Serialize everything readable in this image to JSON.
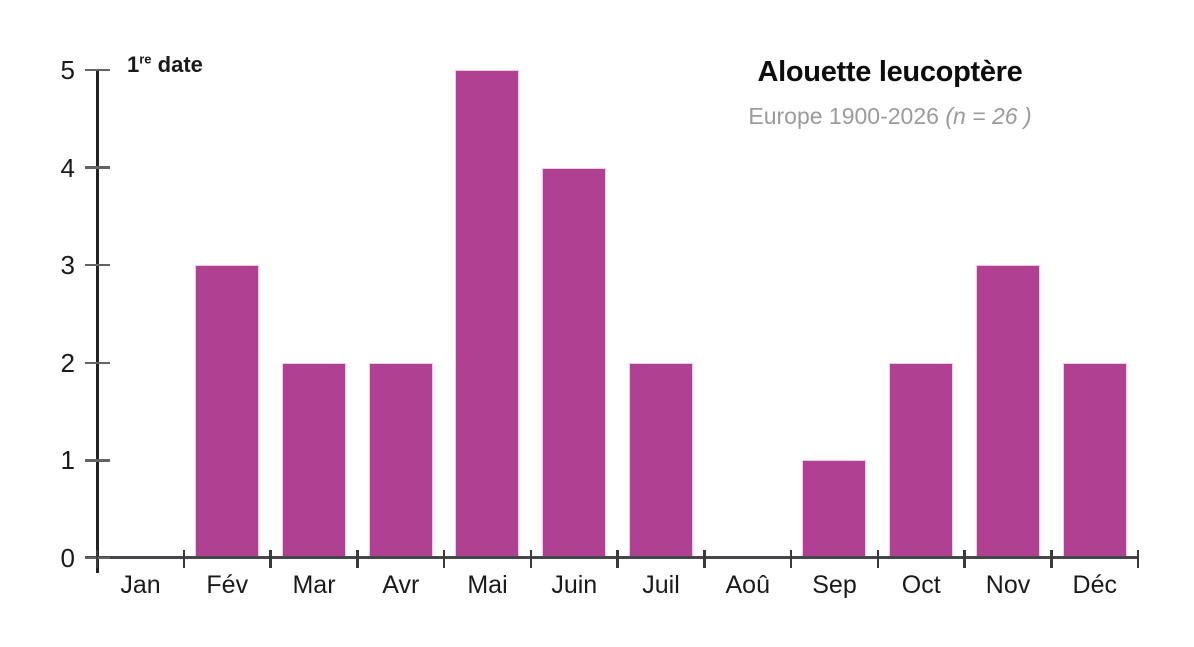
{
  "header": {
    "title": "Alouette leucoptère",
    "subtitle_text": "Europe 1900-2026 ",
    "subtitle_stat": "(n = 26 )"
  },
  "y_axis_title": {
    "num": "1",
    "sup": "re",
    "word": " date"
  },
  "chart_data": {
    "type": "bar",
    "title": "Alouette leucoptère",
    "subtitle": "Europe 1900-2026 (n = 26 )",
    "n": 26,
    "ylabel": "1re date",
    "xlabel": "",
    "categories": [
      "Jan",
      "Fév",
      "Mar",
      "Avr",
      "Mai",
      "Juin",
      "Juil",
      "Aoû",
      "Sep",
      "Oct",
      "Nov",
      "Déc"
    ],
    "values": [
      0,
      3,
      2,
      2,
      5,
      4,
      2,
      0,
      1,
      2,
      3,
      2
    ],
    "ylim": [
      0,
      5
    ],
    "yticks": [
      0,
      1,
      2,
      3,
      4,
      5
    ],
    "grid": false,
    "legend": "none",
    "bar_color": "#af4092",
    "bar_edge_color": "#eccbe3",
    "axis_color": "#222224",
    "x_axis_color": "#46474b",
    "tick_color": "#636363",
    "text_color": "#1a1a1a",
    "subtitle_color": "#9b9b9b"
  }
}
